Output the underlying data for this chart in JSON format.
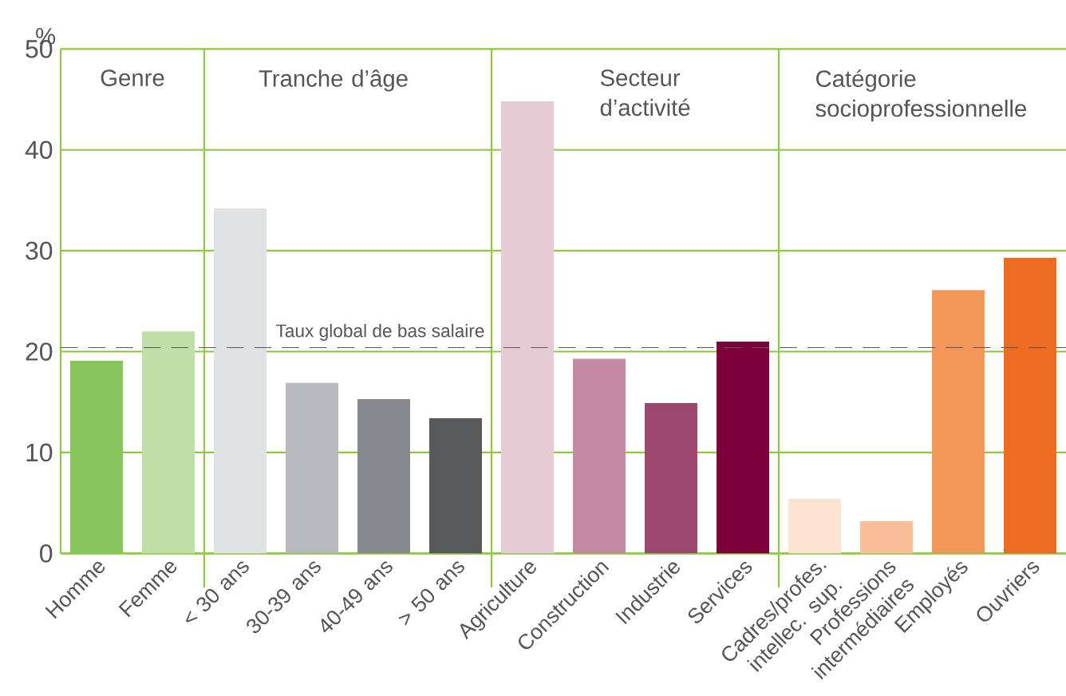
{
  "chart_data": {
    "type": "bar",
    "ylabel": "%",
    "categories": [
      "Homme",
      "Femme",
      "< 30 ans",
      "30-39 ans",
      "40-49 ans",
      "> 50 ans",
      "Agriculture",
      "Construction",
      "Industrie",
      "Services",
      "Cadres/profes. intellec. sup.",
      "Professions intermédiaires",
      "Employés",
      "Ouvriers"
    ],
    "values": [
      19.1,
      22.0,
      34.2,
      16.9,
      15.3,
      13.4,
      44.8,
      19.3,
      14.9,
      21.0,
      5.4,
      3.2,
      26.1,
      29.3
    ],
    "colors": [
      "#86c65a",
      "#c0dfa6",
      "#e0e1e3",
      "#b8b9bc",
      "#88898c",
      "#58595b",
      "#e6cbd5",
      "#c48aa2",
      "#9e476e",
      "#7b003c",
      "#fde3d0",
      "#f8bf98",
      "#f29559",
      "#ee6c22"
    ],
    "ylim": [
      0,
      50
    ],
    "yticks": [
      0,
      10,
      20,
      30,
      40,
      50
    ],
    "grid": "y",
    "ref_lines": [
      {
        "axis": "y",
        "value": 20.4,
        "label": "Taux global de bas salaire",
        "color": "#58595b",
        "line_style": "dashed"
      }
    ],
    "annotations": [
      "Genre",
      "Tranche d’âge",
      "Secteur d’activité",
      "Catégorie socioprofessionnelle"
    ]
  }
}
